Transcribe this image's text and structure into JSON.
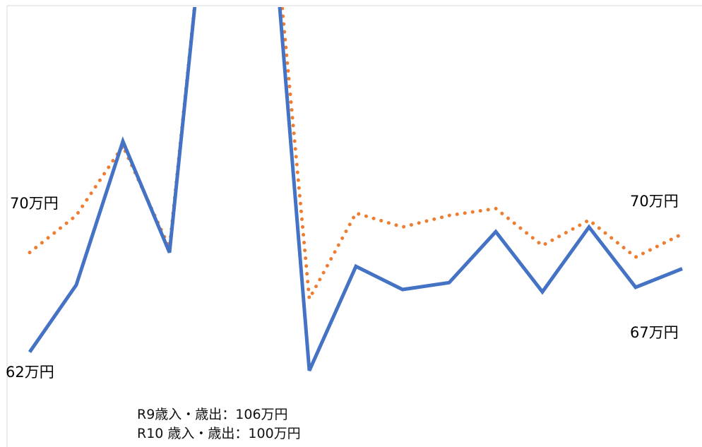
{
  "chart_data": {
    "type": "line",
    "title": "",
    "xlabel": "",
    "ylabel": "",
    "ylim": [
      20,
      115
    ],
    "grid": false,
    "legend": "none",
    "x": [
      1,
      2,
      3,
      4,
      5,
      6,
      7,
      8,
      9,
      10,
      11,
      12,
      13,
      14,
      15
    ],
    "series": [
      {
        "key": "orange",
        "color": "#ED7D31",
        "style": "dotted",
        "values": [
          62.0,
          70.0,
          85.0,
          63.0,
          160,
          160,
          52.0,
          70.5,
          67.5,
          70.0,
          71.5,
          63.5,
          69.0,
          61.0,
          66.0
        ]
      },
      {
        "key": "blue",
        "color": "#4472C4",
        "style": "solid",
        "values": [
          40.5,
          55.0,
          86.0,
          62.0,
          160,
          160,
          36.5,
          59.0,
          54.0,
          55.5,
          66.5,
          53.5,
          67.5,
          54.5,
          58.5
        ]
      }
    ],
    "annotations": [
      {
        "key": "orange_first",
        "text": "70万円",
        "color": "#C00000"
      },
      {
        "key": "orange_last",
        "text": "70万円",
        "color": "#C00000"
      },
      {
        "key": "blue_first",
        "text": "62万円",
        "color": "#0000CC"
      },
      {
        "key": "blue_last",
        "text": "67万円",
        "color": "#0000CC"
      }
    ],
    "note_lines": [
      "R9歳入・歳出：106万円",
      "R10 歳入・歳出：100万円"
    ]
  }
}
